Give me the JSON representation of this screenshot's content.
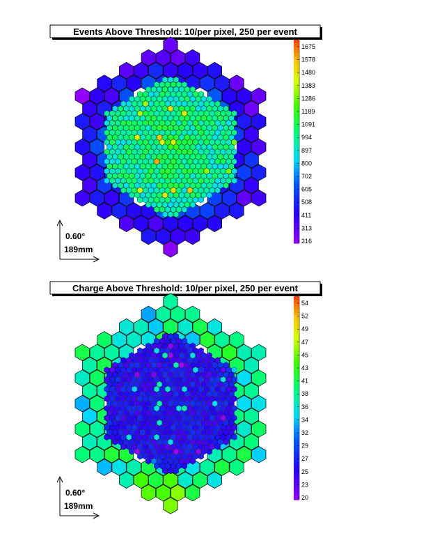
{
  "chart_data": [
    {
      "type": "heatmap",
      "title": "Events Above Threshold: 10/per pixel, 250 per event",
      "colorbar_ticks": [
        "1675",
        "1578",
        "1480",
        "1383",
        "1286",
        "1189",
        "1091",
        "994",
        "897",
        "800",
        "702",
        "605",
        "508",
        "411",
        "313",
        "216"
      ],
      "zrange": [
        216,
        1725
      ],
      "scale_labels": [
        "0.60°",
        "189mm"
      ],
      "outer_level": 540,
      "inner_level": 1080
    },
    {
      "type": "heatmap",
      "title": "Charge Above Threshold: 10/per pixel, 250 per event",
      "colorbar_ticks": [
        "54",
        "52",
        "49",
        "47",
        "45",
        "43",
        "41",
        "38",
        "36",
        "34",
        "32",
        "29",
        "27",
        "25",
        "23",
        "20"
      ],
      "zrange": [
        20,
        55
      ],
      "scale_labels": [
        "0.60°",
        "189mm"
      ],
      "outer_level": 38,
      "inner_level": 26
    }
  ]
}
